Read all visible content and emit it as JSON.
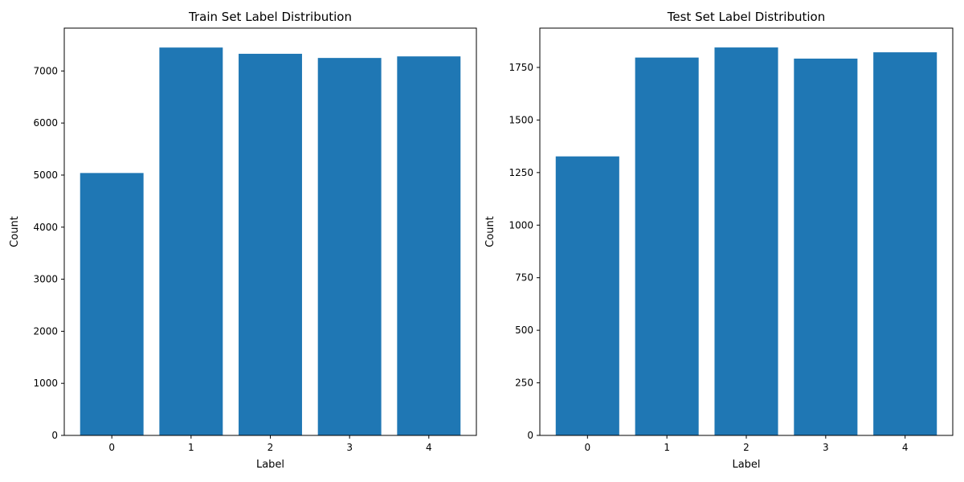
{
  "chart_data": [
    {
      "type": "bar",
      "title": "Train Set Label Distribution",
      "xlabel": "Label",
      "ylabel": "Count",
      "categories": [
        "0",
        "1",
        "2",
        "3",
        "4"
      ],
      "values": [
        5040,
        7450,
        7330,
        7250,
        7280
      ],
      "ylim": [
        0,
        7823
      ],
      "yticks": [
        0,
        1000,
        2000,
        3000,
        4000,
        5000,
        6000,
        7000
      ],
      "bar_color": "#1f77b4",
      "grid": false
    },
    {
      "type": "bar",
      "title": "Test Set Label Distribution",
      "xlabel": "Label",
      "ylabel": "Count",
      "categories": [
        "0",
        "1",
        "2",
        "3",
        "4"
      ],
      "values": [
        1327,
        1797,
        1845,
        1792,
        1822
      ],
      "ylim": [
        0,
        1937
      ],
      "yticks": [
        0,
        250,
        500,
        750,
        1000,
        1250,
        1500,
        1750
      ],
      "bar_color": "#1f77b4",
      "grid": false
    }
  ]
}
